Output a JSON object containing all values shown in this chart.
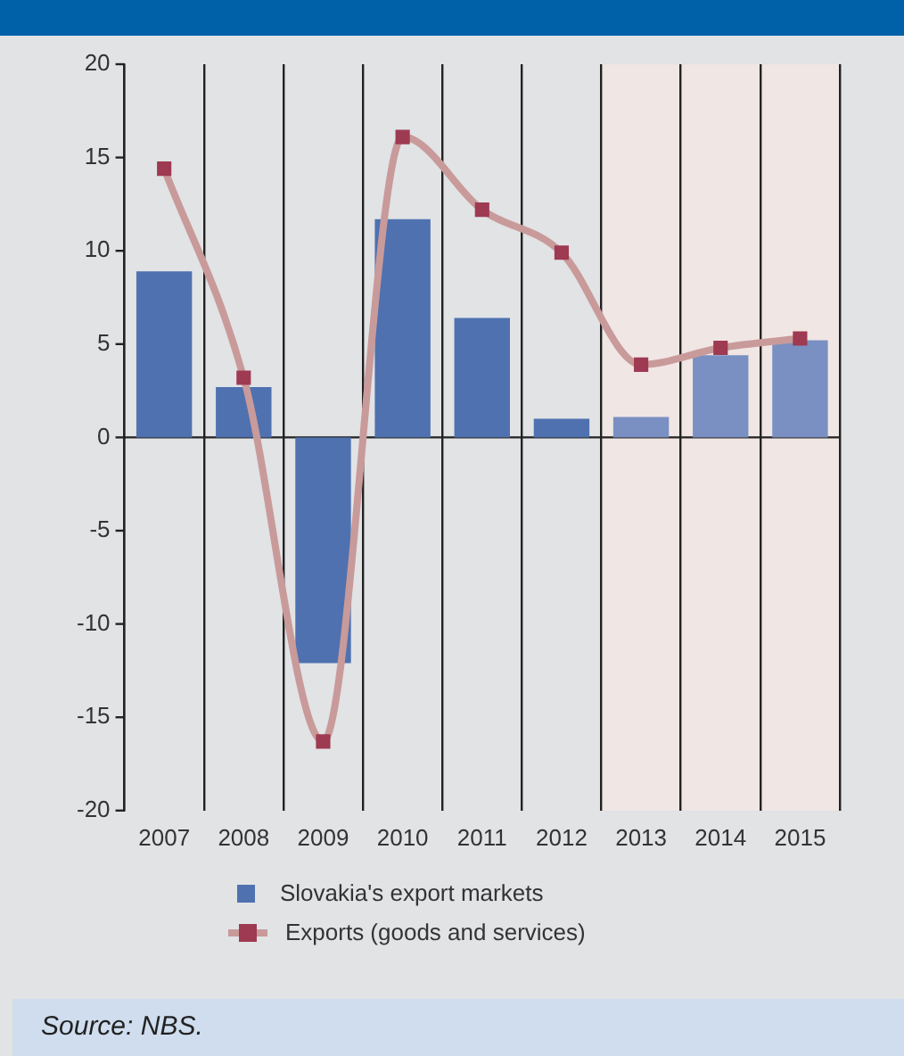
{
  "chart_data": {
    "type": "bar",
    "categories": [
      "2007",
      "2008",
      "2009",
      "2010",
      "2011",
      "2012",
      "2013",
      "2014",
      "2015"
    ],
    "series": [
      {
        "name": "Slovakia's export markets",
        "color": "#4f71b0",
        "colors": [
          "#4f71b0",
          "#4f71b0",
          "#4f71b0",
          "#4f71b0",
          "#4f71b0",
          "#4f71b0",
          "#7b90c2",
          "#7b90c2",
          "#7b90c2"
        ],
        "values": [
          8.9,
          2.7,
          -12.1,
          11.7,
          6.4,
          1.0,
          1.1,
          4.4,
          5.2
        ]
      },
      {
        "name": "Exports (goods and services)",
        "type": "line",
        "color": "#c99a9a",
        "marker": "square",
        "values": [
          14.4,
          3.2,
          -16.3,
          16.1,
          12.2,
          9.9,
          3.9,
          4.8,
          5.3
        ]
      }
    ],
    "ylim": [
      -20,
      20
    ],
    "yticks": [
      -20,
      -15,
      -10,
      -5,
      0,
      5,
      10,
      15,
      20
    ],
    "grid": "x",
    "legend": "bottom",
    "ref_lines": [
      {
        "axis": "y",
        "value": 0,
        "color": "#222222"
      }
    ],
    "bands": [
      {
        "axis": "x",
        "from": "2013",
        "to": "2015",
        "color": "#f0e6e4"
      }
    ],
    "annotations": [
      "Source: NBS."
    ]
  }
}
